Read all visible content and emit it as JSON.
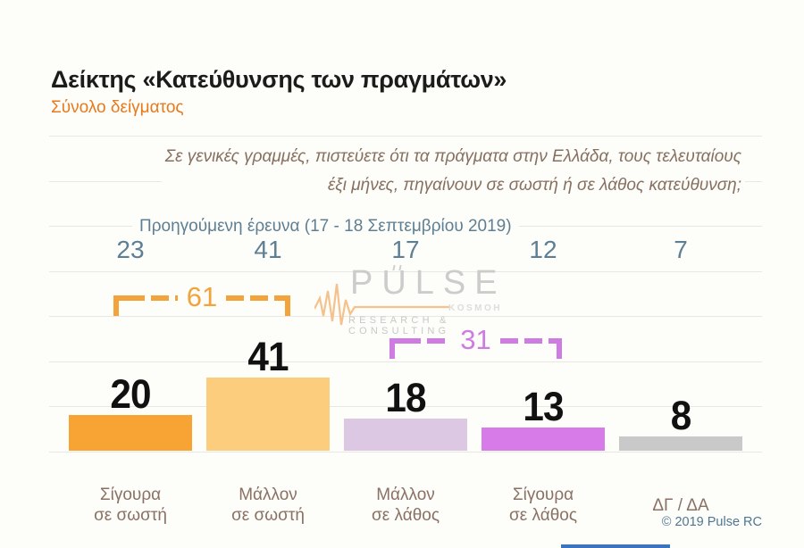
{
  "header": {
    "title": "Δείκτης «Κατεύθυνσης των πραγμάτων»",
    "subtitle": "Σύνολο δείγματος"
  },
  "question": {
    "line1": "Σε γενικές γραμμές, πιστεύετε ότι τα πράγματα στην Ελλάδα, τους τελευταίους",
    "line2": "έξι μήνες, πηγαίνουν σε σωστή ή σε λάθος κατεύθυνση;"
  },
  "previous_survey": {
    "label": "Προηγούμενη έρευνα (17 - 18 Σεπτεμβρίου 2019)"
  },
  "chart_data": {
    "type": "bar",
    "categories": [
      "Σίγουρα\nσε σωστή",
      "Μάλλον\nσε σωστή",
      "Μάλλον\nσε λάθος",
      "Σίγουρα\nσε λάθος",
      "ΔΓ / ΔΑ"
    ],
    "values": [
      20,
      41,
      18,
      13,
      8
    ],
    "previous_values": [
      23,
      41,
      17,
      12,
      7
    ],
    "bar_colors": [
      "#f7a435",
      "#fbcd7d",
      "#dcc8e3",
      "#d77be8",
      "#c9c9c9"
    ],
    "ylim": [
      0,
      175
    ],
    "gridline_step": 25,
    "grid": true,
    "legend": "none",
    "value_label_style": "bold black above each bar",
    "group_sums": [
      {
        "label": "61",
        "value": 61,
        "covers_categories": [
          "Σίγουρα σε σωστή",
          "Μάλλον σε σωστή"
        ],
        "color": "#f2a33c"
      },
      {
        "label": "31",
        "value": 31,
        "covers_categories": [
          "Μάλλον σε λάθος",
          "Σίγουρα σε λάθος"
        ],
        "color": "#cf7ce2"
      }
    ]
  },
  "watermark": {
    "brand": "PULSE",
    "sub_brand": "KOSMOH",
    "tagline": "RESEARCH & CONSULTING"
  },
  "footer": {
    "copyright": "© 2019 Pulse RC"
  },
  "colors": {
    "accent_orange": "#e8791c",
    "slate_blue": "#5e7f93",
    "brown_text": "#8a7164",
    "grid": "#e9e7e3",
    "background": "#fdfdfa",
    "bottom_bar_blue": "#3a74bd"
  }
}
